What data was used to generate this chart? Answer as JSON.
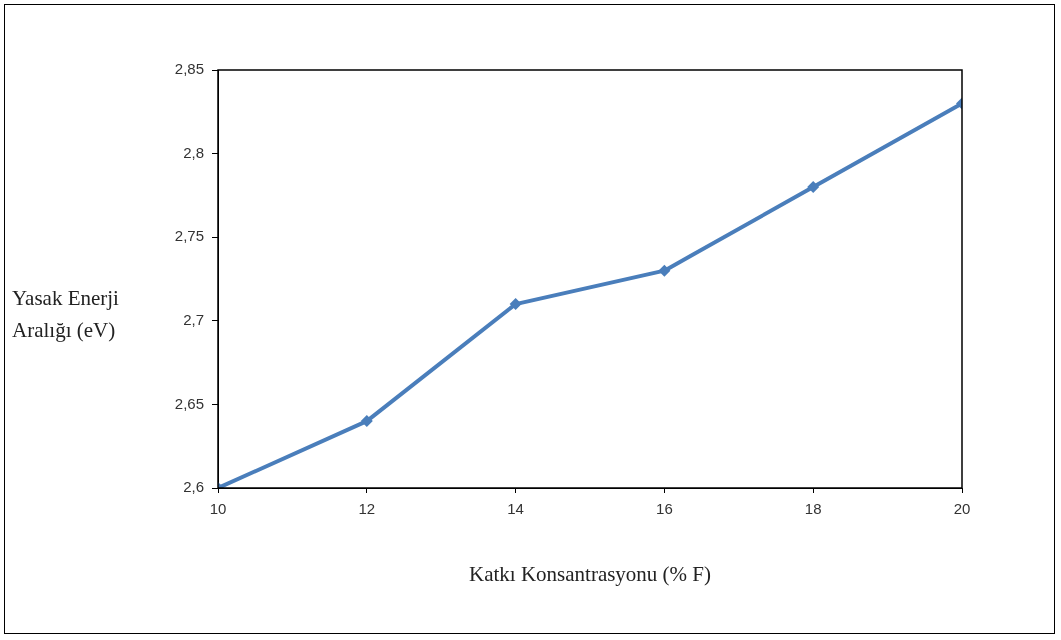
{
  "chart_data": {
    "type": "line",
    "xlabel": "Katkı Konsantrasyonu (% F)",
    "ylabel": "Yasak Enerji Aralığı (eV)",
    "x": [
      10,
      12,
      14,
      16,
      18,
      20
    ],
    "series": [
      {
        "color": "#4a7ebb",
        "values": [
          2.6,
          2.64,
          2.71,
          2.73,
          2.78,
          2.83
        ]
      }
    ],
    "xlim": [
      10,
      20
    ],
    "xticks": [
      10,
      12,
      14,
      16,
      18,
      20
    ],
    "ylim": [
      2.6,
      2.85
    ],
    "yticks": [
      {
        "value": 2.6,
        "label": "2,6"
      },
      {
        "value": 2.65,
        "label": "2,65"
      },
      {
        "value": 2.7,
        "label": "2,7"
      },
      {
        "value": 2.75,
        "label": "2,75"
      },
      {
        "value": 2.8,
        "label": "2,8"
      },
      {
        "value": 2.85,
        "label": "2,85"
      }
    ],
    "marker": "diamond",
    "line_style": "solid",
    "legend": false
  }
}
